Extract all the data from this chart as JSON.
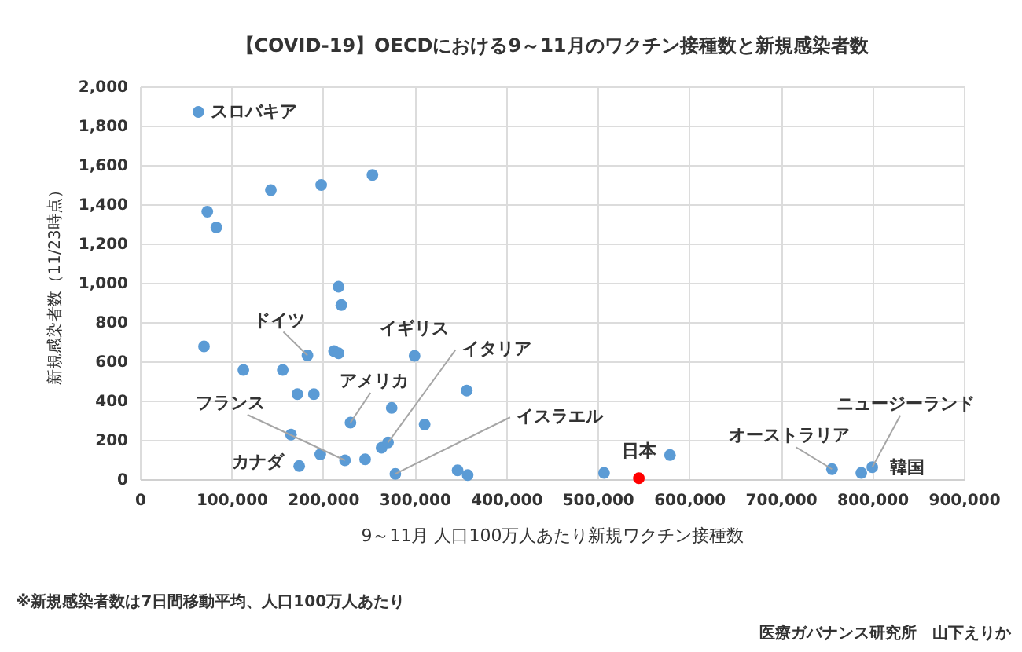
{
  "chart_data": {
    "type": "scatter",
    "title": "【COVID-19】OECDにおける9～11月のワクチン接種数と新規感染者数",
    "xlabel": "9～11月 人口100万人あたり新規ワクチン接種数",
    "ylabel": "新規感染者数（11/23時点）",
    "series": [
      {
        "color": "#5b9bd5",
        "x": [
          63800,
          73600,
          83500,
          143000,
          198000,
          254000,
          217000,
          220000,
          70000,
          183000,
          212000,
          217000,
          300000,
          113000,
          156000,
          172000,
          190000,
          357000,
          275000,
          230000,
          311000,
          165000,
          197000,
          174000,
          224000,
          246000,
          264000,
          271000,
          279000,
          347000,
          358000,
          507000,
          579000,
          756000,
          788000,
          800000
        ],
        "values": [
          1870,
          1362,
          1282,
          1472,
          1498,
          1549,
          980,
          887,
          676,
          630,
          652,
          641,
          628,
          556,
          556,
          433,
          433,
          451,
          363,
          288,
          278,
          227,
          126,
          67,
          96,
          101,
          160,
          187,
          27,
          45,
          21,
          32,
          123,
          51,
          32,
          61
        ]
      },
      {
        "color": "#ff0000",
        "x": [
          545000
        ],
        "values": [
          5
        ]
      }
    ],
    "xlim": [
      0,
      900000
    ],
    "xticks": [
      0,
      {
        "value": 100000,
        "label": "100,000"
      },
      {
        "value": 200000,
        "label": "200,000"
      },
      {
        "value": 300000,
        "label": "300,000"
      },
      {
        "value": 400000,
        "label": "400,000"
      },
      {
        "value": 500000,
        "label": "500,000"
      },
      {
        "value": 600000,
        "label": "600,000"
      },
      {
        "value": 700000,
        "label": "700,000"
      },
      {
        "value": 800000,
        "label": "800,000"
      },
      {
        "value": 900000,
        "label": "900,000"
      }
    ],
    "ylim": [
      0,
      2000
    ],
    "yticks": [
      0,
      200,
      400,
      600,
      800,
      {
        "value": 1000,
        "label": "1,000"
      },
      {
        "value": 1200,
        "label": "1,200"
      },
      {
        "value": 1400,
        "label": "1,400"
      },
      {
        "value": 1600,
        "label": "1,600"
      },
      {
        "value": 1800,
        "label": "1,800"
      },
      {
        "value": 2000,
        "label": "2,000"
      }
    ],
    "grid": true,
    "legend": false,
    "marker": "circle",
    "annotations": [
      {
        "text": "スロバキア",
        "x": 63800,
        "y": 1870
      },
      {
        "text": "ドイツ",
        "x": 183000,
        "y": 630
      },
      {
        "text": "イギリス",
        "x": 300000,
        "y": 628
      },
      {
        "text": "イタリア",
        "x": 271000,
        "y": 187
      },
      {
        "text": "アメリカ",
        "x": 230000,
        "y": 288
      },
      {
        "text": "フランス",
        "x": 224000,
        "y": 96
      },
      {
        "text": "カナダ",
        "x": 174000,
        "y": 67
      },
      {
        "text": "イスラエル",
        "x": 279000,
        "y": 27
      },
      {
        "text": "日本",
        "x": 545000,
        "y": 5
      },
      {
        "text": "オーストラリア",
        "x": 756000,
        "y": 51
      },
      {
        "text": "ニュージーランド",
        "x": 800000,
        "y": 61
      },
      {
        "text": "韓国",
        "x": 788000,
        "y": 32
      },
      "※新規感染者数は7日間移動平均、人口100万人あたり",
      "医療ガバナンス研究所　山下えりか"
    ]
  }
}
